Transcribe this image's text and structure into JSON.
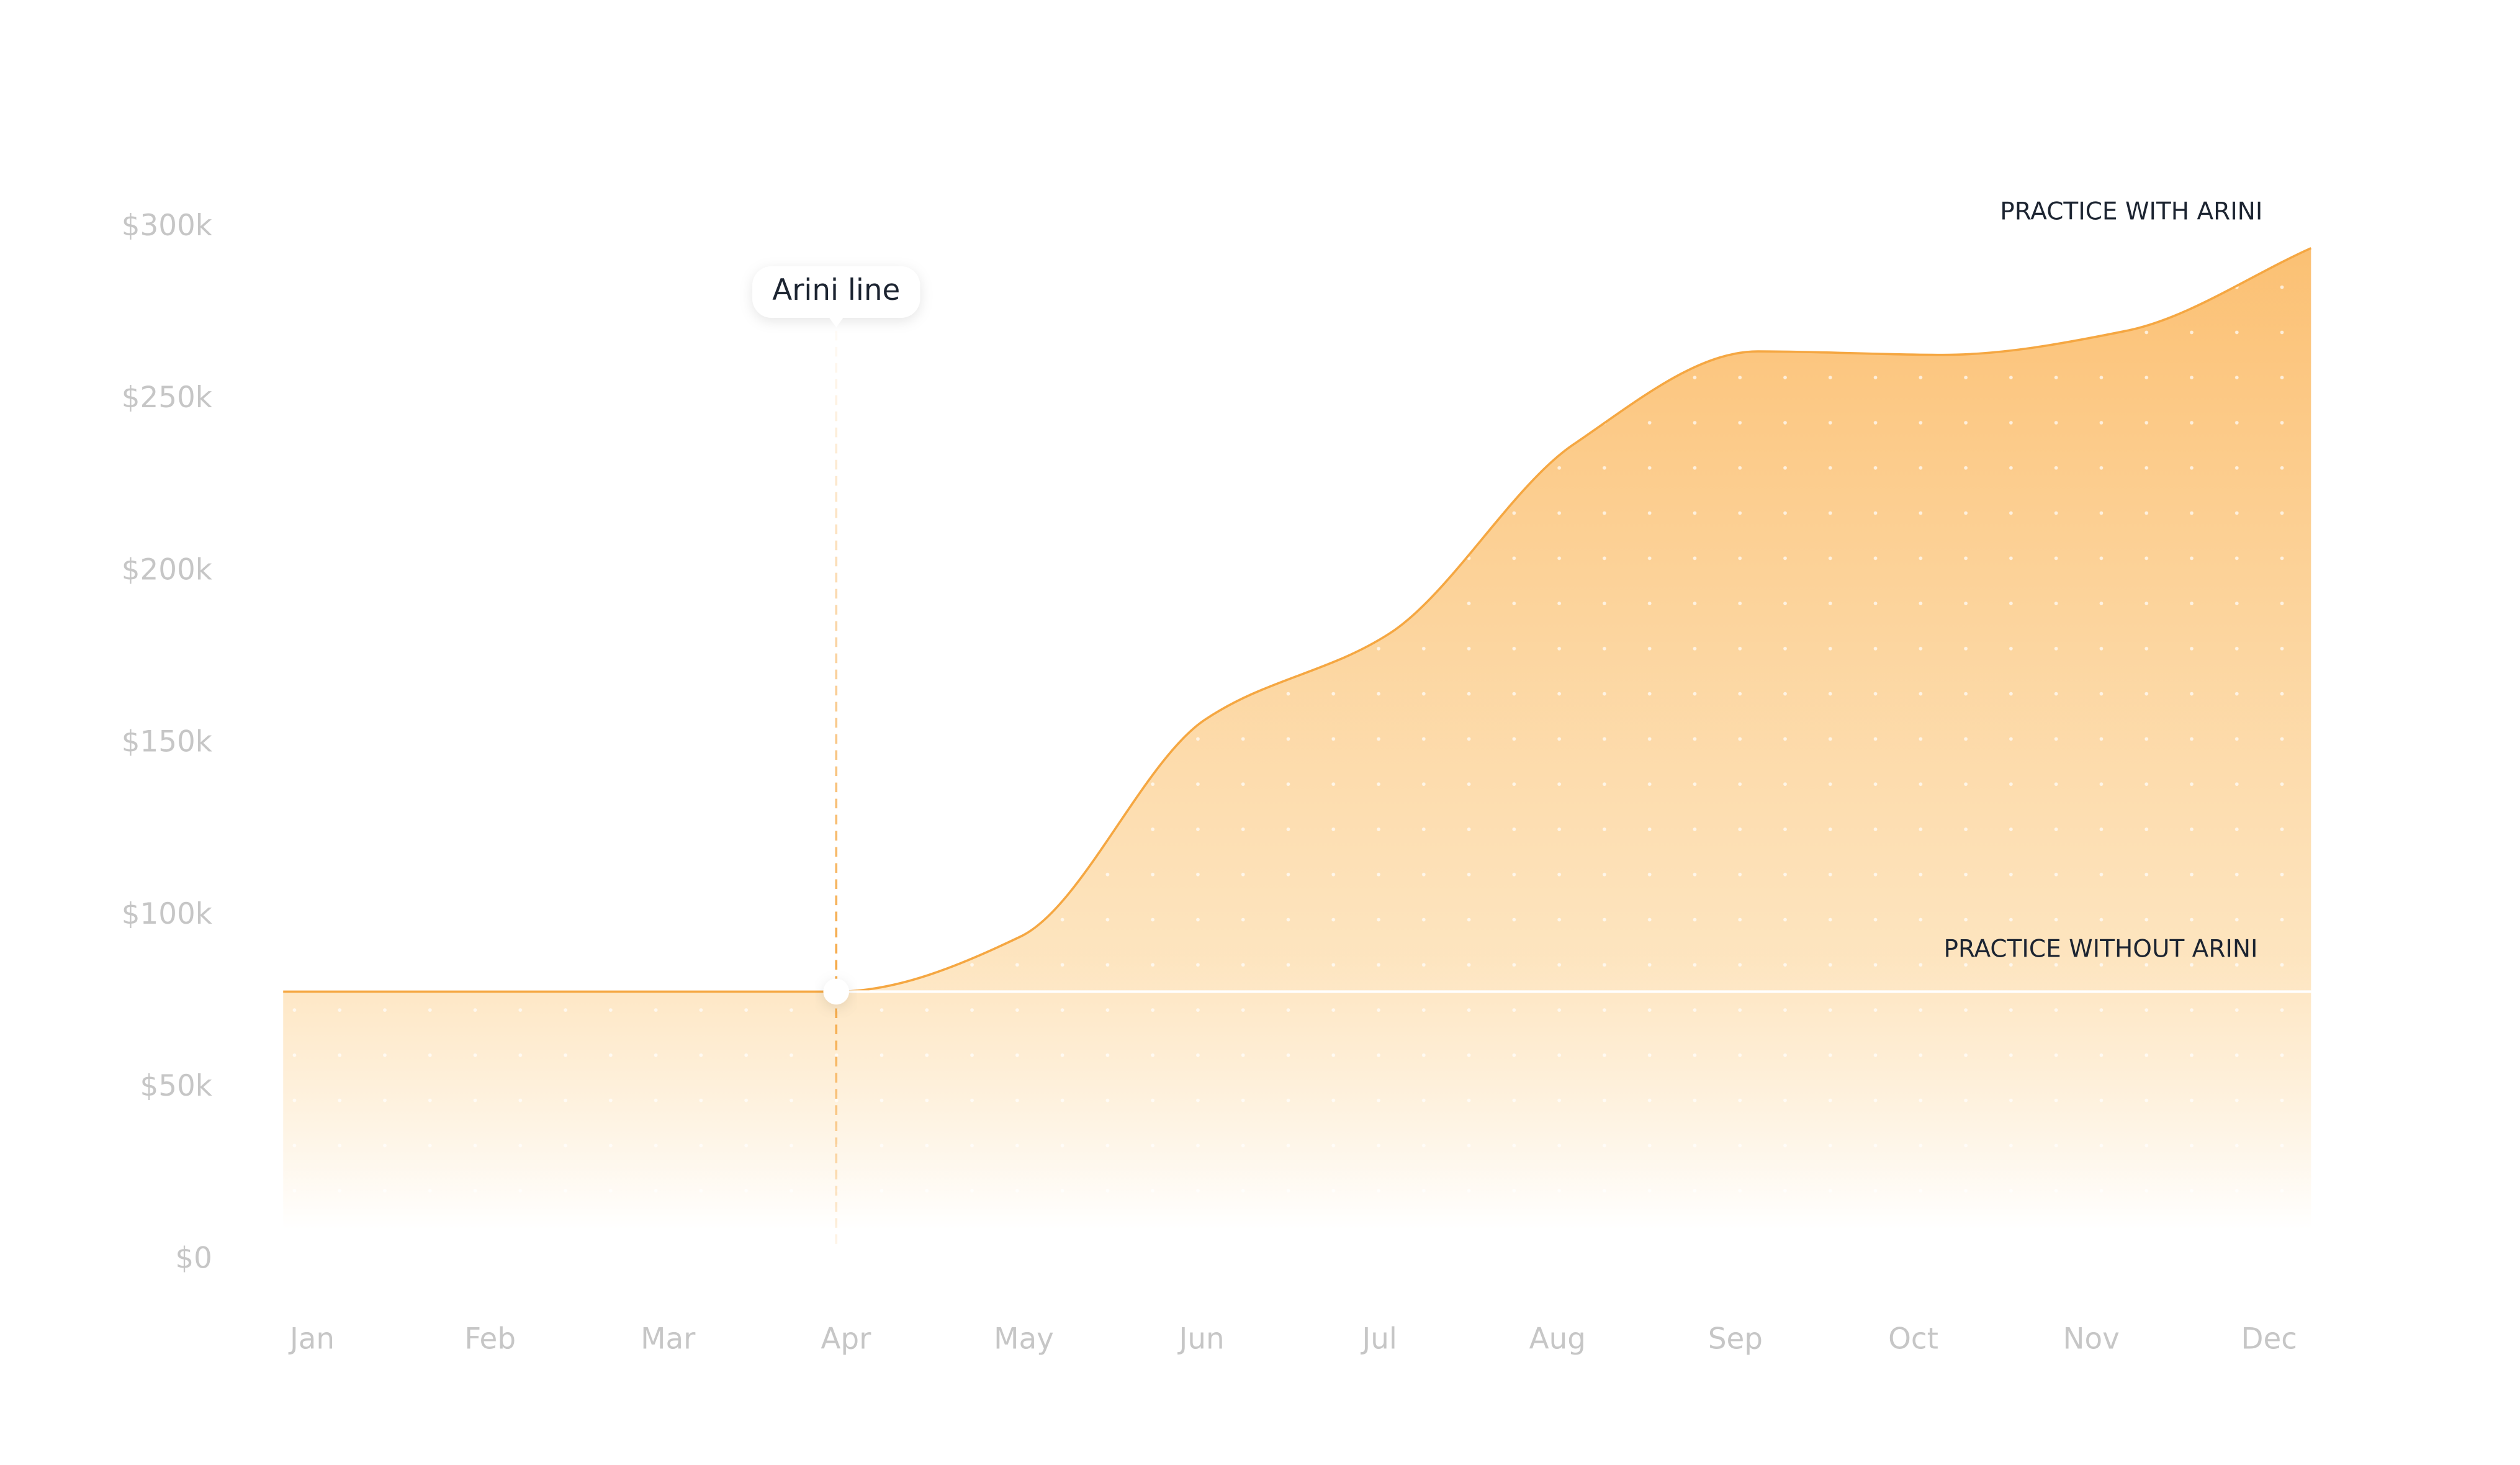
{
  "chart_data": {
    "type": "area",
    "categories": [
      "Jan",
      "Feb",
      "Mar",
      "Apr",
      "May",
      "Jun",
      "Jul",
      "Aug",
      "Sep",
      "Oct",
      "Nov",
      "Dec"
    ],
    "series": [
      {
        "name": "PRACTICE WITH ARINI",
        "color": "#f5a742",
        "values": [
          78000,
          78000,
          78000,
          78000,
          94000,
          157000,
          182000,
          237000,
          264000,
          263000,
          270000,
          294000
        ]
      },
      {
        "name": "PRACTICE WITHOUT ARINI",
        "color": "#ffffff",
        "values": [
          null,
          null,
          null,
          78000,
          78000,
          78000,
          78000,
          78000,
          78000,
          78000,
          78000,
          78000
        ]
      }
    ],
    "ylim": [
      0,
      300000
    ],
    "yticks": [
      {
        "value": 0,
        "label": "$0"
      },
      {
        "value": 50000,
        "label": "$50k"
      },
      {
        "value": 100000,
        "label": "$100k"
      },
      {
        "value": 150000,
        "label": "$150k"
      },
      {
        "value": 200000,
        "label": "$200k"
      },
      {
        "value": 250000,
        "label": "$250k"
      },
      {
        "value": 300000,
        "label": "$300k"
      }
    ],
    "grid": false,
    "annotations": [
      {
        "text": "Arini line",
        "category": "Apr"
      }
    ]
  }
}
